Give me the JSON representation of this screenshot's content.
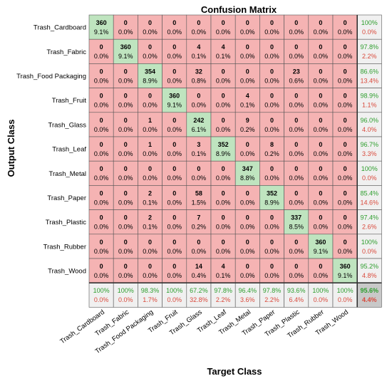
{
  "chart_data": {
    "type": "heatmap",
    "title": "Confusion Matrix",
    "xlabel": "Target Class",
    "ylabel": "Output Class",
    "classes": [
      "Trash_Cardboard",
      "Trash_Fabric",
      "Trash_Food Packaging",
      "Trash_Fruit",
      "Trash_Glass",
      "Trash_Leaf",
      "Trash_Metal",
      "Trash_Paper",
      "Trash_Plastic",
      "Trash_Rubber",
      "Trash_Wood"
    ],
    "counts": [
      [
        360,
        0,
        0,
        0,
        0,
        0,
        0,
        0,
        0,
        0,
        0
      ],
      [
        0,
        360,
        0,
        0,
        4,
        4,
        0,
        0,
        0,
        0,
        0
      ],
      [
        0,
        0,
        354,
        0,
        32,
        0,
        0,
        0,
        23,
        0,
        0
      ],
      [
        0,
        0,
        0,
        360,
        0,
        0,
        4,
        0,
        0,
        0,
        0
      ],
      [
        0,
        0,
        1,
        0,
        242,
        0,
        9,
        0,
        0,
        0,
        0
      ],
      [
        0,
        0,
        1,
        0,
        3,
        352,
        0,
        8,
        0,
        0,
        0
      ],
      [
        0,
        0,
        0,
        0,
        0,
        0,
        347,
        0,
        0,
        0,
        0
      ],
      [
        0,
        0,
        2,
        0,
        58,
        0,
        0,
        352,
        0,
        0,
        0
      ],
      [
        0,
        0,
        2,
        0,
        7,
        0,
        0,
        0,
        337,
        0,
        0
      ],
      [
        0,
        0,
        0,
        0,
        0,
        0,
        0,
        0,
        0,
        360,
        0
      ],
      [
        0,
        0,
        0,
        0,
        14,
        4,
        0,
        0,
        0,
        0,
        360
      ]
    ],
    "percents": [
      [
        "9.1%",
        "0.0%",
        "0.0%",
        "0.0%",
        "0.0%",
        "0.0%",
        "0.0%",
        "0.0%",
        "0.0%",
        "0.0%",
        "0.0%"
      ],
      [
        "0.0%",
        "9.1%",
        "0.0%",
        "0.0%",
        "0.1%",
        "0.1%",
        "0.0%",
        "0.0%",
        "0.0%",
        "0.0%",
        "0.0%"
      ],
      [
        "0.0%",
        "0.0%",
        "8.9%",
        "0.0%",
        "0.8%",
        "0.0%",
        "0.0%",
        "0.0%",
        "0.6%",
        "0.0%",
        "0.0%"
      ],
      [
        "0.0%",
        "0.0%",
        "0.0%",
        "9.1%",
        "0.0%",
        "0.0%",
        "0.1%",
        "0.0%",
        "0.0%",
        "0.0%",
        "0.0%"
      ],
      [
        "0.0%",
        "0.0%",
        "0.0%",
        "0.0%",
        "6.1%",
        "0.0%",
        "0.2%",
        "0.0%",
        "0.0%",
        "0.0%",
        "0.0%"
      ],
      [
        "0.0%",
        "0.0%",
        "0.0%",
        "0.0%",
        "0.1%",
        "8.9%",
        "0.0%",
        "0.2%",
        "0.0%",
        "0.0%",
        "0.0%"
      ],
      [
        "0.0%",
        "0.0%",
        "0.0%",
        "0.0%",
        "0.0%",
        "0.0%",
        "8.8%",
        "0.0%",
        "0.0%",
        "0.0%",
        "0.0%"
      ],
      [
        "0.0%",
        "0.0%",
        "0.1%",
        "0.0%",
        "1.5%",
        "0.0%",
        "0.0%",
        "8.9%",
        "0.0%",
        "0.0%",
        "0.0%"
      ],
      [
        "0.0%",
        "0.0%",
        "0.1%",
        "0.0%",
        "0.2%",
        "0.0%",
        "0.0%",
        "0.0%",
        "8.5%",
        "0.0%",
        "0.0%"
      ],
      [
        "0.0%",
        "0.0%",
        "0.0%",
        "0.0%",
        "0.0%",
        "0.0%",
        "0.0%",
        "0.0%",
        "0.0%",
        "9.1%",
        "0.0%"
      ],
      [
        "0.0%",
        "0.0%",
        "0.0%",
        "0.0%",
        "0.4%",
        "0.1%",
        "0.0%",
        "0.0%",
        "0.0%",
        "0.0%",
        "9.1%"
      ]
    ],
    "row_summary": [
      [
        "100%",
        "0.0%"
      ],
      [
        "97.8%",
        "2.2%"
      ],
      [
        "86.6%",
        "13.4%"
      ],
      [
        "98.9%",
        "1.1%"
      ],
      [
        "96.0%",
        "4.0%"
      ],
      [
        "96.7%",
        "3.3%"
      ],
      [
        "100%",
        "0.0%"
      ],
      [
        "85.4%",
        "14.6%"
      ],
      [
        "97.4%",
        "2.6%"
      ],
      [
        "100%",
        "0.0%"
      ],
      [
        "95.2%",
        "4.8%"
      ]
    ],
    "col_summary": [
      [
        "100%",
        "0.0%"
      ],
      [
        "100%",
        "0.0%"
      ],
      [
        "98.3%",
        "1.7%"
      ],
      [
        "100%",
        "0.0%"
      ],
      [
        "67.2%",
        "32.8%"
      ],
      [
        "97.8%",
        "2.2%"
      ],
      [
        "96.4%",
        "3.6%"
      ],
      [
        "97.8%",
        "2.2%"
      ],
      [
        "93.6%",
        "6.4%"
      ],
      [
        "100%",
        "0.0%"
      ],
      [
        "100%",
        "0.0%"
      ]
    ],
    "overall": [
      "95.6%",
      "4.4%"
    ],
    "colors": {
      "correct": "#bfe4bf",
      "incorrect": "#f5b3b3",
      "summary": "#f0f0f0",
      "overall": "#c8c8c8",
      "good_text": "#2e9e2e",
      "bad_text": "#d94a3c",
      "grid": "#555555"
    }
  }
}
